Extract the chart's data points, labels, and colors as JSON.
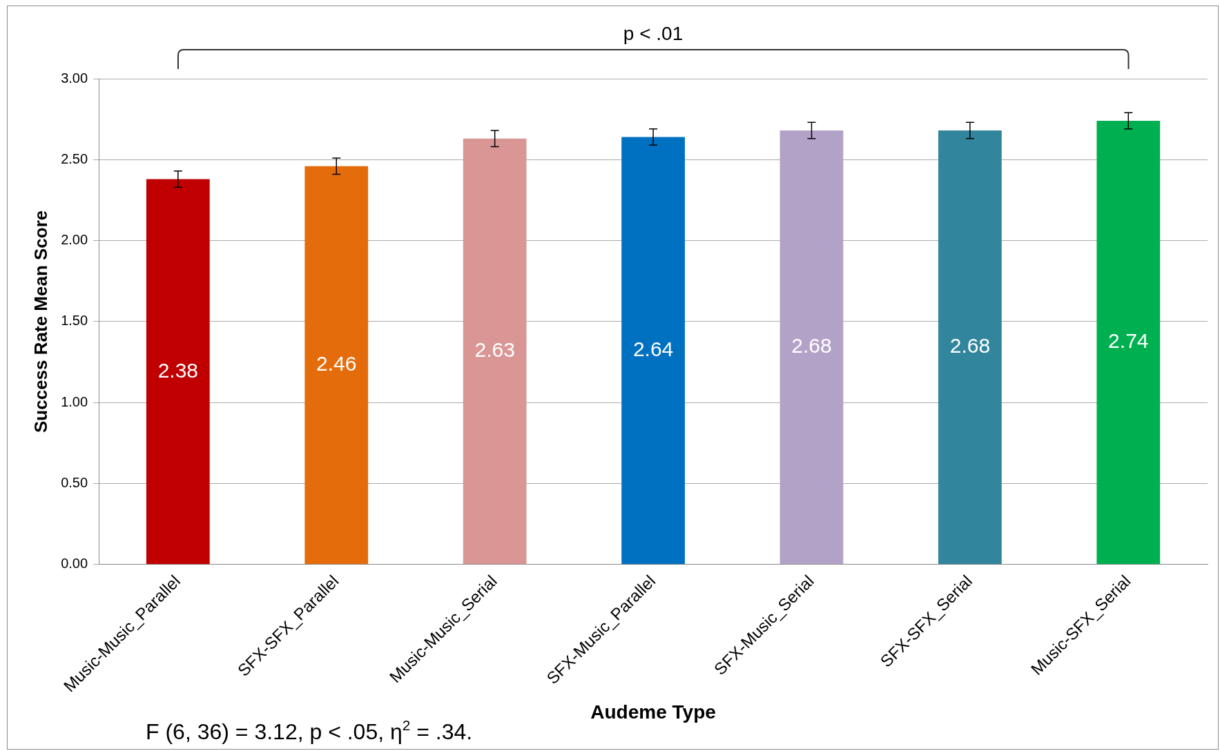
{
  "chart_data": {
    "type": "bar",
    "xlabel": "Audeme Type",
    "ylabel": "Success Rate Mean Score",
    "categories": [
      "Music-Music_Parallel",
      "SFX-SFX_Parallel",
      "Music-Music_Serial",
      "SFX-Music_Parallel",
      "SFX-Music_Serial",
      "SFX-SFX_Serial",
      "Music-SFX_Serial"
    ],
    "values": [
      2.38,
      2.46,
      2.63,
      2.64,
      2.68,
      2.68,
      2.74
    ],
    "colors": [
      "#c00000",
      "#e46c0a",
      "#d99694",
      "#0070c0",
      "#b3a2c7",
      "#31859c",
      "#00b050"
    ],
    "errors": [
      0.05,
      0.05,
      0.05,
      0.05,
      0.05,
      0.05,
      0.05
    ],
    "data_labels": true,
    "ylim": [
      0,
      3
    ],
    "yticks": [
      {
        "value": 0,
        "label": "0.00"
      },
      {
        "value": 0.5,
        "label": "0.50"
      },
      {
        "value": 1,
        "label": "1.00"
      },
      {
        "value": 1.5,
        "label": "1.50"
      },
      {
        "value": 2,
        "label": "2.00"
      },
      {
        "value": 2.5,
        "label": "2.50"
      },
      {
        "value": 3,
        "label": "3.00"
      }
    ],
    "grid": "y",
    "legend": false,
    "annotations": [
      "p < .01",
      "F (6, 36) = 3.12, p < .05, η$^{2}$ = .34."
    ]
  }
}
